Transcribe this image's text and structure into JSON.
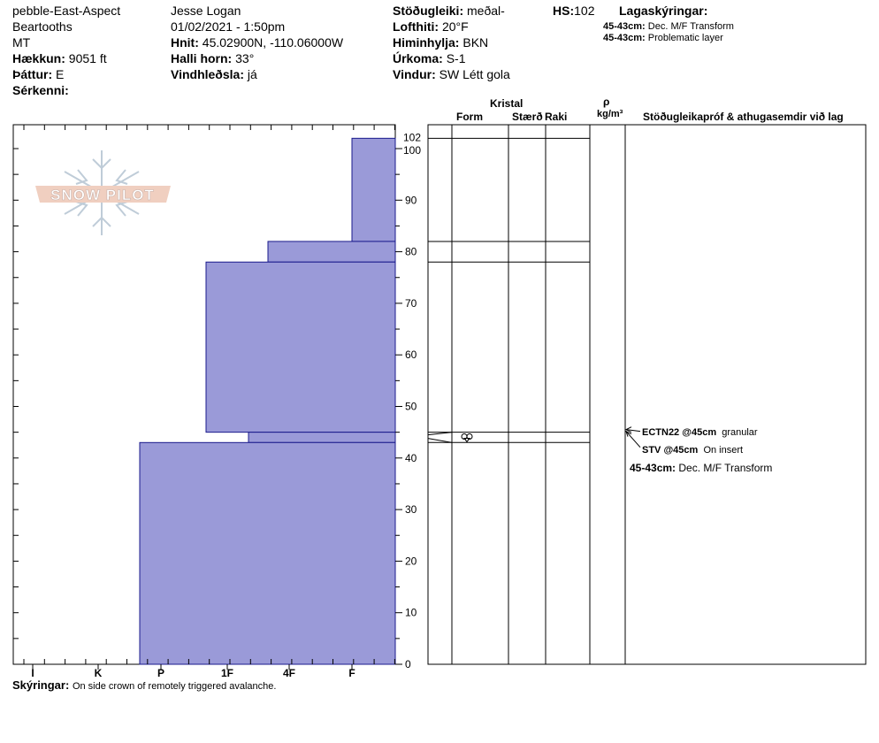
{
  "header": {
    "col1": {
      "site": "pebble-East-Aspect",
      "range": "Beartooths",
      "state": "MT",
      "elevation_label": "Hækkun:",
      "elevation_value": "9051 ft",
      "aspect_label": "Þáttur:",
      "aspect_value": "E",
      "features_label": "Sérkenni:",
      "features_value": ""
    },
    "col2": {
      "observer": "Jesse Logan",
      "datetime": "01/02/2021 - 1:50pm",
      "coords_label": "Hnit:",
      "coords_value": "45.02900N, -110.06000W",
      "slope_label": "Halli horn:",
      "slope_value": "33°",
      "windload_label": "Vindhleðsla:",
      "windload_value": "já"
    },
    "col3": {
      "stability_label": "Stöðugleiki:",
      "stability_value": "meðal-",
      "airtemp_label": "Lofthiti:",
      "airtemp_value": "20°F",
      "sky_label": "Himinhylja:",
      "sky_value": "BKN",
      "precip_label": "Úrkoma:",
      "precip_value": "S-1",
      "wind_label": "Vindur:",
      "wind_value": "SW Létt gola"
    },
    "hs_label": "HS:",
    "hs_value": "102",
    "legend_title": "Lagaskýringar:",
    "legend_items": [
      {
        "range": "45-43cm:",
        "text": "Dec. M/F Transform"
      },
      {
        "range": "45-43cm:",
        "text": "Problematic layer"
      }
    ]
  },
  "logo_text": "SNOW PILOT",
  "columns": {
    "kristal": "Kristal",
    "form": "Form",
    "size": "Stærð",
    "moisture": "Raki",
    "rho": "ρ",
    "density_unit": "kg/m³",
    "tests": "Stöðugleikapróf & athugasemdir við lag"
  },
  "notes": {
    "label": "Skýringar:",
    "text": "On side crown of remotely triggered avalanche."
  },
  "test_results": [
    {
      "code": "ECTN22 @45cm",
      "comment": "granular"
    },
    {
      "code": "STV @45cm",
      "comment": "On insert"
    }
  ],
  "layer_comment": {
    "range": "45-43cm:",
    "text": "Dec. M/F Transform"
  },
  "chart_data": {
    "type": "bar",
    "title": "",
    "ylabel": "",
    "ylim": [
      0,
      104
    ],
    "y_ticks": [
      0,
      10,
      20,
      30,
      40,
      50,
      60,
      70,
      80,
      90,
      100,
      102
    ],
    "hardness_categories": [
      "I",
      "K",
      "P",
      "1F",
      "4F",
      "F"
    ],
    "bar_color": "#9a9ad8",
    "layers": [
      {
        "top": 102,
        "bottom": 82,
        "hardness": "F"
      },
      {
        "top": 82,
        "bottom": 78,
        "hardness": "4F-"
      },
      {
        "top": 78,
        "bottom": 45,
        "hardness": "1F-"
      },
      {
        "top": 45,
        "bottom": 43,
        "hardness": "1F+"
      },
      {
        "top": 43,
        "bottom": 0,
        "hardness": "P-"
      }
    ],
    "layer_boundaries": [
      102,
      82,
      78,
      45,
      43
    ],
    "grain_symbol_layer": {
      "top": 45,
      "bottom": 43,
      "symbol": "rounding-faceted"
    }
  }
}
